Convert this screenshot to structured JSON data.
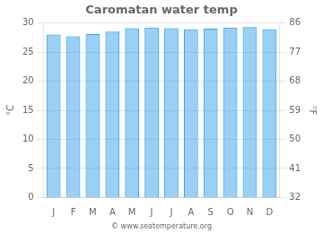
{
  "chart_data": {
    "type": "bar",
    "title": "Caromatan water temp",
    "categories": [
      "J",
      "F",
      "M",
      "A",
      "M",
      "J",
      "J",
      "A",
      "S",
      "O",
      "N",
      "D"
    ],
    "values": [
      28.0,
      27.7,
      28.1,
      28.5,
      29.1,
      29.2,
      29.1,
      28.9,
      29.0,
      29.2,
      29.3,
      28.9
    ],
    "ylim": [
      0,
      30
    ],
    "yticks": [
      0,
      5,
      10,
      15,
      20,
      25,
      30
    ],
    "ylabel": "°C",
    "y2lim": [
      32,
      86
    ],
    "y2ticks": [
      32,
      41,
      50,
      59,
      68,
      77,
      86
    ],
    "y2label": "°F",
    "grid": true,
    "annotations": [
      "© www.seatemperature.org"
    ]
  }
}
